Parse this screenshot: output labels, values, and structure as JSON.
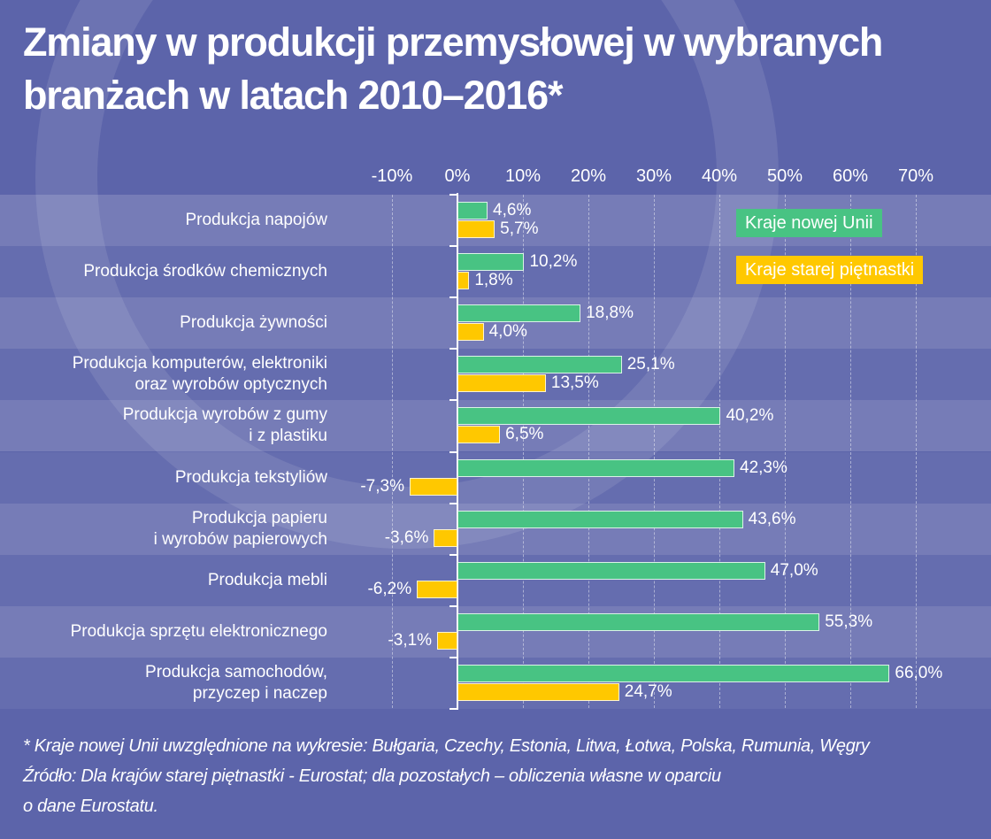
{
  "title_line1": "Zmiany w produkcji przemysłowej w wybranych",
  "title_line2": "branżach w latach 2010–2016*",
  "colors": {
    "new": "#48c383",
    "old": "#ffc800",
    "background": "#5c64aa"
  },
  "chart_data": {
    "type": "bar",
    "orientation": "horizontal",
    "title": "Zmiany w produkcji przemysłowej w wybranych branżach w latach 2010–2016*",
    "xlim": [
      -10,
      70
    ],
    "ticks": [
      "-10%",
      "0%",
      "10%",
      "20%",
      "30%",
      "40%",
      "50%",
      "60%",
      "70%"
    ],
    "tick_values": [
      -10,
      0,
      10,
      20,
      30,
      40,
      50,
      60,
      70
    ],
    "categories": [
      [
        "Produkcja napojów"
      ],
      [
        "Produkcja środków chemicznych"
      ],
      [
        "Produkcja żywności"
      ],
      [
        "Produkcja komputerów, elektroniki",
        "oraz wyrobów optycznych"
      ],
      [
        "Produkcja wyrobów z gumy",
        "i z plastiku"
      ],
      [
        "Produkcja tekstyliów"
      ],
      [
        "Produkcja papieru",
        "i wyrobów papierowych"
      ],
      [
        "Produkcja mebli"
      ],
      [
        "Produkcja sprzętu elektronicznego"
      ],
      [
        "Produkcja samochodów,",
        "przyczep i naczep"
      ]
    ],
    "series": [
      {
        "name": "Kraje nowej Unii",
        "values": [
          4.6,
          10.2,
          18.8,
          25.1,
          40.2,
          42.3,
          43.6,
          47.0,
          55.3,
          66.0
        ],
        "labels": [
          "4,6%",
          "10,2%",
          "18,8%",
          "25,1%",
          "40,2%",
          "42,3%",
          "43,6%",
          "47,0%",
          "55,3%",
          "66,0%"
        ]
      },
      {
        "name": "Kraje starej piętnastki",
        "values": [
          5.7,
          1.8,
          4.0,
          13.5,
          6.5,
          -7.3,
          -3.6,
          -6.2,
          -3.1,
          24.7
        ],
        "labels": [
          "5,7%",
          "1,8%",
          "4,0%",
          "13,5%",
          "6,5%",
          "-7,3%",
          "-3,6%",
          "-6,2%",
          "-3,1%",
          "24,7%"
        ]
      }
    ],
    "legend_position": "top-right"
  },
  "footnote1": "* Kraje nowej Unii uwzględnione na wykresie: Bułgaria, Czechy, Estonia, Litwa, Łotwa, Polska, Rumunia, Węgry",
  "footnote2": "Źródło: Dla krajów starej piętnastki - Eurostat; dla pozostałych – obliczenia własne w oparciu",
  "footnote3": "o dane Eurostatu."
}
